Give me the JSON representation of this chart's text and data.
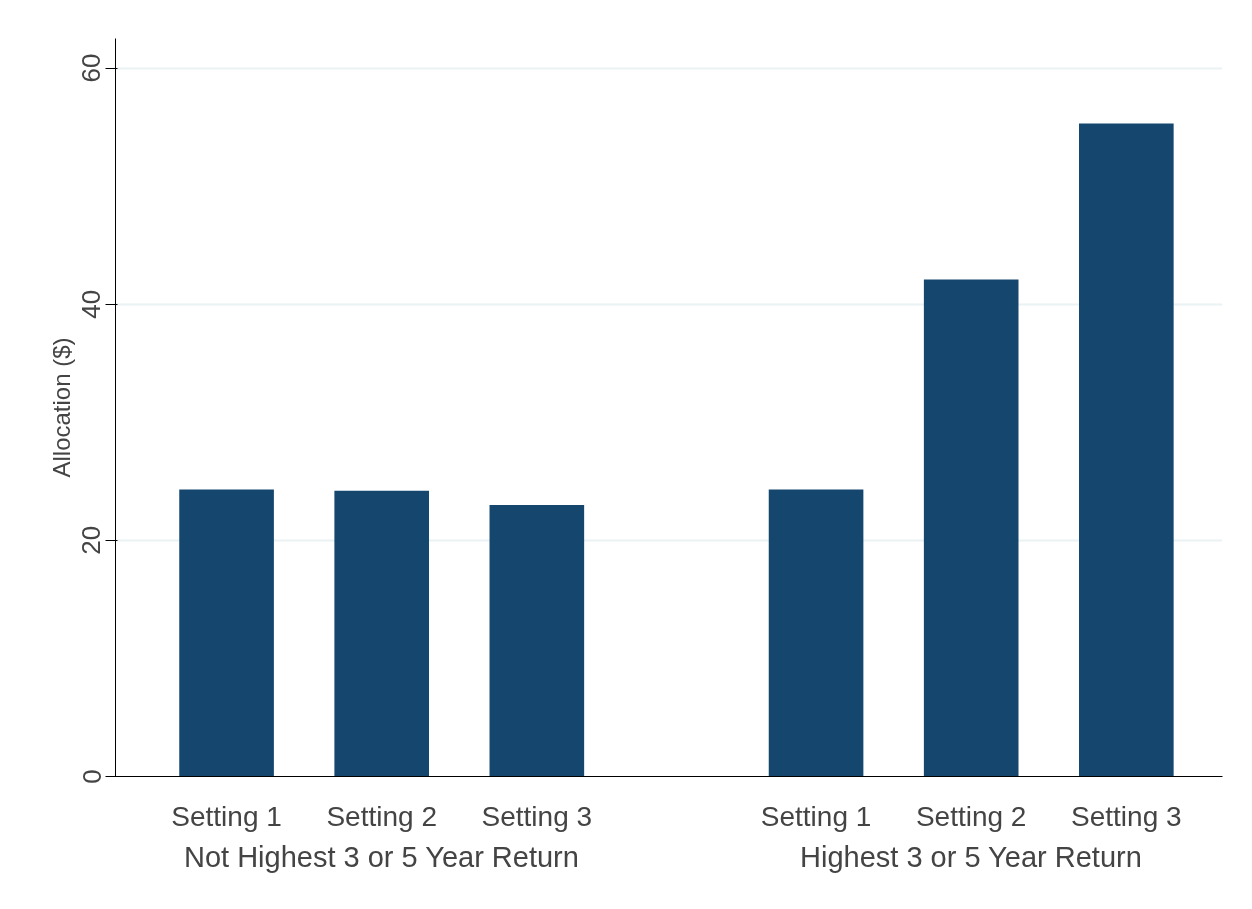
{
  "chart_data": {
    "type": "bar",
    "ylabel": "Allocation ($)",
    "categories": [
      "Setting 1",
      "Setting 2",
      "Setting 3",
      "Setting 1",
      "Setting 2",
      "Setting 3"
    ],
    "values": [
      24.3,
      24.2,
      23.0,
      24.3,
      42.1,
      55.3
    ],
    "color": "#14466e",
    "annotations": [
      "Not Highest 3 or 5 Year Return",
      "Highest 3 or 5 Year Return"
    ],
    "ylim": [
      0,
      62.5
    ],
    "yticks": [
      0,
      20,
      40,
      60
    ],
    "grid": "y"
  }
}
